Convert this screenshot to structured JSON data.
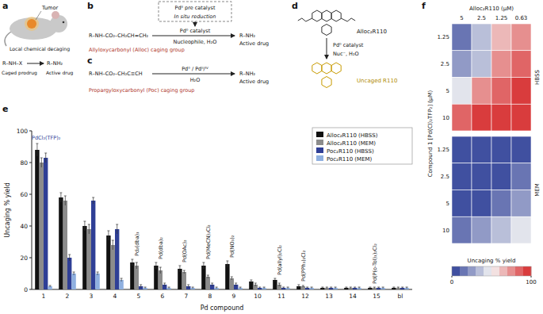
{
  "panels": {
    "a": {
      "letter": "a",
      "tumor": "Tumor",
      "process": "Local chemical decaging",
      "caged_formula": "R–NH–X",
      "active_formula": "R–NH₂",
      "caged_label": "Caged prodrug",
      "active_label": "Active drug"
    },
    "b": {
      "letter": "b",
      "precatalyst": "Pdᴵᴵ pre catalyst",
      "reduction": "In situ reduction",
      "catalyst": "Pd⁰ catalyst",
      "conditions": "Nucleophile, H₂O",
      "caged_formula": "R–NH–CO₂–CH₂CH=CH₂",
      "caging_group": "Allyloxycarbonyl (Alloc) caging group",
      "active_formula": "R–NH₂",
      "active_label": "Active drug"
    },
    "c": {
      "letter": "c",
      "catalyst": "Pd⁰ / Pdᴵᴵ/ᴵⱽ",
      "conditions": "H₂O",
      "caged_formula": "R–NH–CO₂–CH₂C≡CH",
      "caging_group": "Propargyloxycarbonyl (Poc) caging group",
      "active_formula": "R–NH₂",
      "active_label": "Active drug"
    },
    "d": {
      "letter": "d",
      "substrate": "Alloc₂R110",
      "catalyst": "Pd⁰ catalyst",
      "conditions": "Nuc⁻, H₂O",
      "product": "Uncaged R110"
    }
  },
  "chart_data": [
    {
      "type": "bar",
      "panel": "e",
      "x_label": "Pd compound",
      "y_label": "Uncaging % yield",
      "categories": [
        "1",
        "2",
        "3",
        "4",
        "5",
        "6",
        "7",
        "8",
        "9",
        "10",
        "11",
        "12",
        "13",
        "14",
        "15",
        "bl"
      ],
      "compound_names": [
        "PdCl₂(TFP)₂",
        null,
        null,
        null,
        "Pd₂(dba)₃",
        "Pd(dba)₂",
        "Pd(OAc)₂",
        "Pd(MeCN)₂Cl₂",
        "Pd(NO₃)₂",
        null,
        "Pd(allyl)₂Cl₂",
        "Pd(PPh₃)₂Cl₂",
        null,
        null,
        "Pd(P(o-Tol)₃)₂Cl₂",
        null
      ],
      "ylim": [
        0,
        100
      ],
      "yticks": [
        0,
        20,
        40,
        60,
        80,
        100
      ],
      "legend": "top-right",
      "grid": false,
      "series": [
        {
          "name": "Alloc₂R110 (HBSS)",
          "color": "#111111",
          "values": [
            88,
            58,
            40,
            34,
            17,
            15,
            13,
            15,
            16,
            5,
            6,
            2,
            1,
            1,
            1,
            1
          ],
          "errors": [
            4,
            3,
            3,
            3,
            2,
            2,
            2,
            2,
            2,
            1,
            1,
            1,
            0.5,
            0.5,
            0.5,
            0.5
          ]
        },
        {
          "name": "Alloc₂R110 (MEM)",
          "color": "#8c8c8c",
          "values": [
            80,
            56,
            38,
            28,
            15,
            12,
            11,
            8,
            7,
            3,
            3,
            2,
            1,
            1,
            1,
            1
          ],
          "errors": [
            3,
            3,
            3,
            3,
            2,
            2,
            1,
            1,
            1,
            1,
            1,
            0.5,
            0.5,
            0.5,
            0.5,
            0.5
          ]
        },
        {
          "name": "Poc₂R110 (HBSS)",
          "color": "#2f3f96",
          "values": [
            83,
            20,
            56,
            38,
            2,
            3,
            2,
            3,
            3,
            1,
            1,
            1,
            1,
            1,
            1,
            1
          ],
          "errors": [
            3,
            2,
            2,
            3,
            1,
            1,
            1,
            1,
            1,
            0.5,
            0.5,
            0.5,
            0.5,
            0.5,
            0.5,
            0.5
          ]
        },
        {
          "name": "Poc₂R110 (MEM)",
          "color": "#8fb0e0",
          "values": [
            2,
            10,
            10,
            6,
            1,
            1,
            1,
            1,
            1,
            1,
            1,
            1,
            1,
            1,
            1,
            1
          ],
          "errors": [
            0.5,
            1,
            1,
            1,
            0.5,
            0.5,
            0.5,
            0.5,
            0.5,
            0.5,
            0.5,
            0.5,
            0.5,
            0.5,
            0.5,
            0.5
          ]
        }
      ]
    },
    {
      "type": "heatmap",
      "panel": "f",
      "title": "Alloc₂R110 (μM)",
      "y_label": "Compound 1 [Pd(Cl)₂TFP₂] (μM)",
      "columns": [
        5,
        2.5,
        1.25,
        0.63
      ],
      "groups": [
        {
          "name": "HBSS",
          "rows": [
            1.25,
            2.5,
            5,
            10
          ],
          "values": [
            [
              10,
              30,
              60,
              75
            ],
            [
              25,
              35,
              70,
              85
            ],
            [
              45,
              75,
              85,
              92
            ],
            [
              80,
              90,
              95,
              95
            ]
          ]
        },
        {
          "name": "MEM",
          "rows": [
            1.25,
            2.5,
            5,
            10
          ],
          "values": [
            [
              3,
              3,
              4,
              5
            ],
            [
              4,
              5,
              6,
              10
            ],
            [
              6,
              8,
              12,
              28
            ],
            [
              18,
              25,
              35,
              45
            ]
          ]
        }
      ],
      "colorbar": {
        "label": "Uncaging % yield",
        "range": [
          0,
          100
        ],
        "ticks": [
          0,
          100
        ]
      }
    }
  ]
}
